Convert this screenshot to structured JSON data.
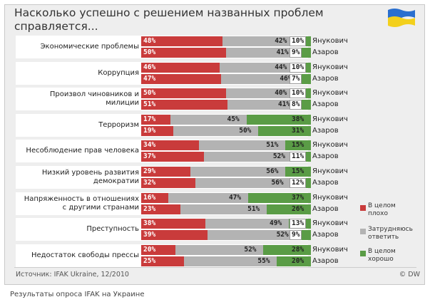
{
  "header": {
    "title_line1": "Насколько успешно с решением названных проблем",
    "title_line2": "справляется..."
  },
  "legend": {
    "red": "В целом плохо",
    "gray": "Затрудняюсь ответить",
    "green": "В целом хорошо"
  },
  "footer": {
    "source": "Источник: IFAK Ukraine, 12/2010",
    "credit": "© DW",
    "caption": "Результаты опроса IFAK на Украине"
  },
  "colors": {
    "bad": "#c93b3b",
    "neutral": "#b3b3b3",
    "good": "#5a9c46",
    "flag_blue": "#2a6fcf",
    "flag_yellow": "#f3d01c"
  },
  "chart_data": {
    "type": "bar",
    "stacked": true,
    "orientation": "horizontal",
    "series": [
      {
        "name": "В целом плохо",
        "key": "bad"
      },
      {
        "name": "Затрудняюсь ответить",
        "key": "neutral"
      },
      {
        "name": "В целом хорошо",
        "key": "good"
      }
    ],
    "persons": [
      "Янукович",
      "Азаров"
    ],
    "categories": [
      {
        "label": "Экономические проблемы",
        "data": [
          {
            "bad": 48,
            "neutral": 42,
            "good": 10
          },
          {
            "bad": 50,
            "neutral": 41,
            "good": 9
          }
        ]
      },
      {
        "label": "Коррупция",
        "data": [
          {
            "bad": 46,
            "neutral": 44,
            "good": 10
          },
          {
            "bad": 47,
            "neutral": 46,
            "good": 7
          }
        ]
      },
      {
        "label": "Произвол чиновников и милиции",
        "data": [
          {
            "bad": 50,
            "neutral": 40,
            "good": 10
          },
          {
            "bad": 51,
            "neutral": 41,
            "good": 8
          }
        ]
      },
      {
        "label": "Терроризм",
        "data": [
          {
            "bad": 17,
            "neutral": 45,
            "good": 38
          },
          {
            "bad": 19,
            "neutral": 50,
            "good": 31
          }
        ]
      },
      {
        "label": "Несоблюдение прав человека",
        "data": [
          {
            "bad": 34,
            "neutral": 51,
            "good": 15
          },
          {
            "bad": 37,
            "neutral": 52,
            "good": 11
          }
        ]
      },
      {
        "label": "Низкий уровень развития демократии",
        "data": [
          {
            "bad": 29,
            "neutral": 56,
            "good": 15
          },
          {
            "bad": 32,
            "neutral": 56,
            "good": 12
          }
        ]
      },
      {
        "label": "Напряженность в отношениях с другими странами",
        "data": [
          {
            "bad": 16,
            "neutral": 47,
            "good": 37
          },
          {
            "bad": 23,
            "neutral": 51,
            "good": 26
          }
        ]
      },
      {
        "label": "Преступность",
        "data": [
          {
            "bad": 38,
            "neutral": 49,
            "good": 13
          },
          {
            "bad": 39,
            "neutral": 52,
            "good": 9
          }
        ]
      },
      {
        "label": "Недостаток свободы прессы",
        "data": [
          {
            "bad": 20,
            "neutral": 52,
            "good": 28
          },
          {
            "bad": 25,
            "neutral": 55,
            "good": 20
          }
        ]
      }
    ],
    "value_suffix": "%",
    "xlim": [
      0,
      100
    ],
    "legend_position": "right"
  }
}
